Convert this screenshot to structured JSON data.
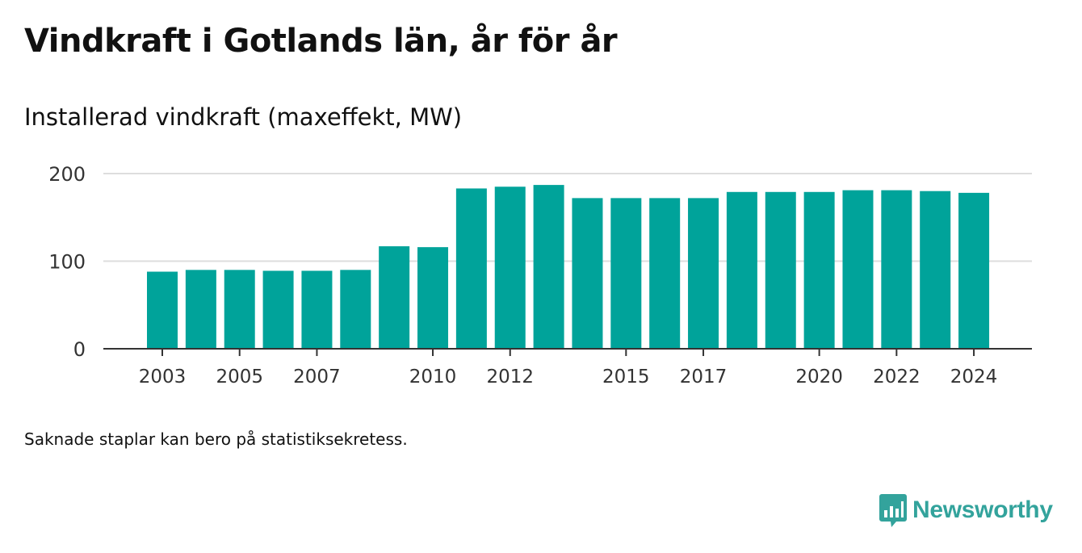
{
  "title": "Vindkraft i Gotlands län, år för år",
  "subtitle": "Installerad vindkraft (maxeffekt, MW)",
  "footnote": "Saknade staplar kan bero på statistiksekretess.",
  "brand": {
    "name": "Newsworthy",
    "icon": "newsworthy-logo-icon",
    "color": "#33a39c"
  },
  "chart_data": {
    "type": "bar",
    "title": "Vindkraft i Gotlands län, år för år",
    "subtitle": "Installerad vindkraft (maxeffekt, MW)",
    "xlabel": "",
    "ylabel": "",
    "ylim": [
      0,
      200
    ],
    "yticks": [
      0,
      100,
      200
    ],
    "grid": true,
    "bar_color": "#00a39a",
    "categories": [
      "2003",
      "2004",
      "2005",
      "2006",
      "2007",
      "2008",
      "2009",
      "2010",
      "2011",
      "2012",
      "2013",
      "2014",
      "2015",
      "2016",
      "2017",
      "2018",
      "2019",
      "2020",
      "2021",
      "2022",
      "2023",
      "2024"
    ],
    "x_tick_labels": [
      "2003",
      "2005",
      "2007",
      "2010",
      "2012",
      "2015",
      "2017",
      "2020",
      "2022",
      "2024"
    ],
    "values": [
      88,
      90,
      90,
      89,
      89,
      90,
      117,
      116,
      183,
      185,
      187,
      172,
      172,
      172,
      172,
      179,
      179,
      179,
      181,
      181,
      180,
      178
    ]
  }
}
